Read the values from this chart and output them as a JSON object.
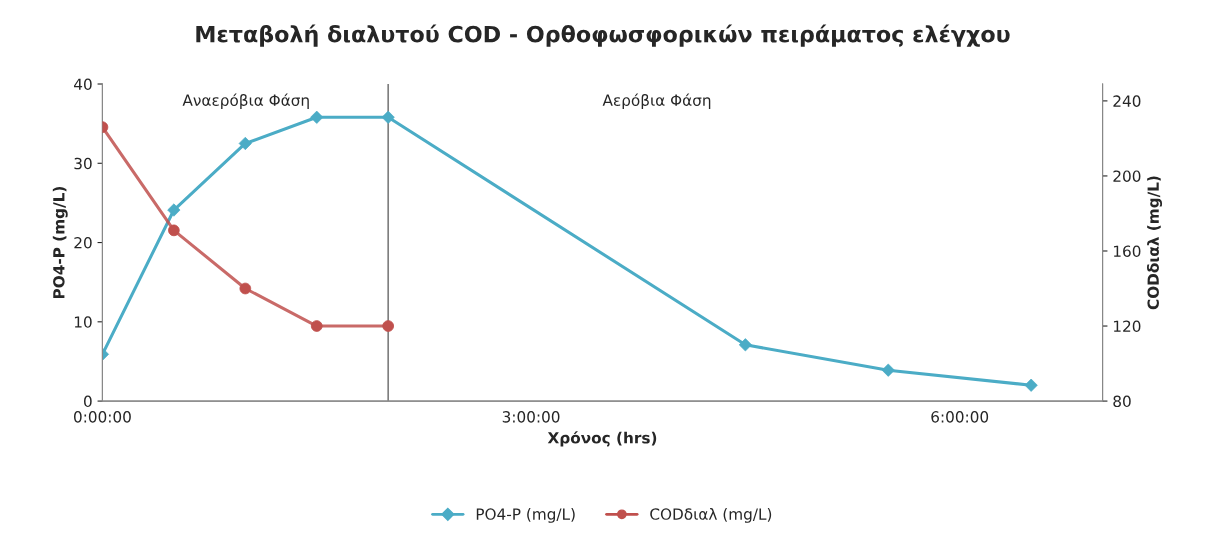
{
  "chart_data": {
    "type": "line",
    "title": "Μεταβολή διαλυτού COD - Ορθοφωσφορικών πειράματος ελέγχου",
    "xlabel": "Χρόνος (hrs)",
    "ylabel": "PO4-P (mg/L)",
    "y2label": "CODδιαλ (mg/L)",
    "series": [
      {
        "name": "PO4-P (mg/L)",
        "color": "#4bacc6",
        "marker": "diamond",
        "x": [
          0,
          0.5,
          1,
          1.5,
          2,
          4.5,
          5.5,
          6.5
        ],
        "values": [
          5.9,
          24.1,
          32.5,
          35.8,
          35.8,
          7.1,
          3.9,
          2.0
        ]
      },
      {
        "name": "CODδιαλ (mg/L)",
        "color": "#c0504d",
        "marker": "circle",
        "axis": "y2",
        "x": [
          0,
          0.5,
          1,
          1.5,
          2
        ],
        "values": [
          226,
          171,
          140,
          120,
          120
        ]
      }
    ],
    "xlim": [
      0,
      7
    ],
    "xticks": [
      {
        "value": 0,
        "label": "0:00:00"
      },
      {
        "value": 3,
        "label": "3:00:00"
      },
      {
        "value": 6,
        "label": "6:00:00"
      }
    ],
    "ylim": [
      0,
      40
    ],
    "yticks": [
      0,
      10,
      20,
      30,
      40
    ],
    "y2lim": [
      80,
      249
    ],
    "y2ticks": [
      80,
      120,
      160,
      200,
      240
    ],
    "ref_lines": [
      {
        "axis": "x",
        "value": 2,
        "color": "#7f7f7f"
      }
    ],
    "annotations": [
      "Αναερόβια Φάση",
      "Αερόβια Φάση"
    ],
    "grid": false,
    "legend": "bottom",
    "line_style": "solid"
  }
}
